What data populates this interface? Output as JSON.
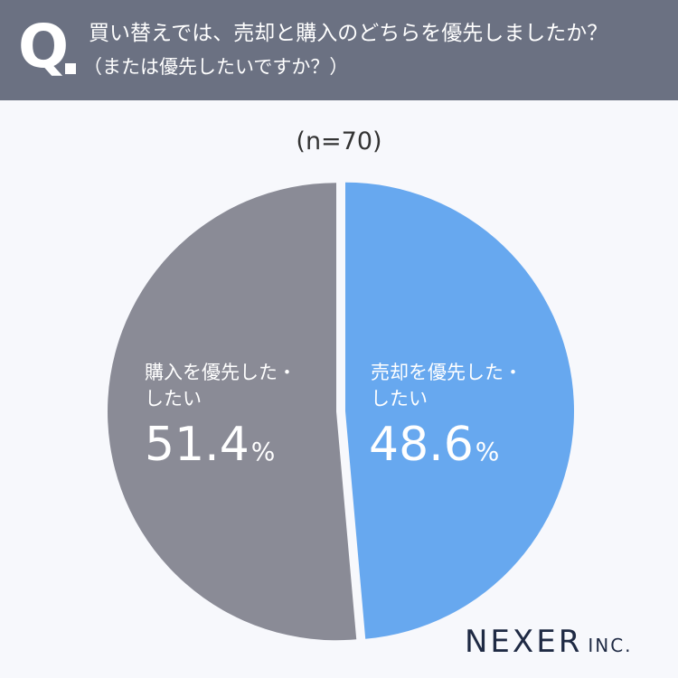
{
  "header": {
    "q_mark": "Q",
    "question_line1": "買い替えでは、売却と購入のどちらを優先しましたか？",
    "question_line2": "（または優先したいですか？）"
  },
  "sample_size": "(n=70)",
  "chart_data": {
    "type": "pie",
    "title": "",
    "slices": [
      {
        "label_line1": "売却を優先した・",
        "label_line2": "したい",
        "value": 48.6,
        "value_text": "48.6",
        "color": "#67a8ef"
      },
      {
        "label_line1": "購入を優先した・",
        "label_line2": "したい",
        "value": 51.4,
        "value_text": "51.4",
        "color": "#8a8b96"
      }
    ],
    "unit": "%"
  },
  "logo": {
    "main": "NEXER",
    "sub": "INC."
  }
}
